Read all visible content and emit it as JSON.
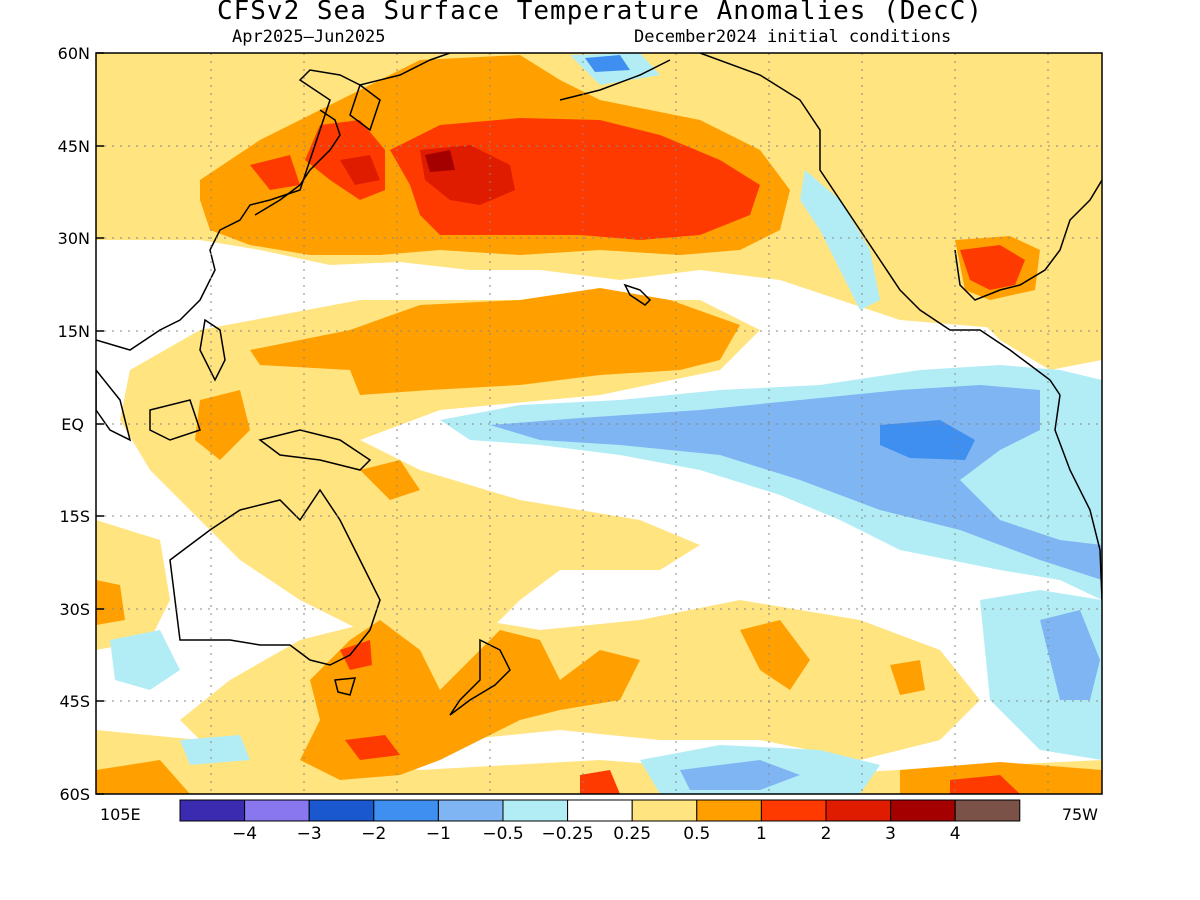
{
  "header": {
    "title": "CFSv2 Sea Surface Temperature Anomalies (DecC)",
    "period": "Apr2025–Jun2025",
    "init": "December2024 initial conditions"
  },
  "axes": {
    "lat_labels": [
      "60N",
      "45N",
      "30N",
      "15N",
      "EQ",
      "15S",
      "30S",
      "45S",
      "60S"
    ],
    "lon_left": "105E",
    "lon_right": "75W"
  },
  "colorbar": {
    "colors": [
      "#3b2bb0",
      "#8877ee",
      "#1a58d0",
      "#3f8ff0",
      "#7fb5f2",
      "#b2edf6",
      "#ffffff",
      "#ffe480",
      "#ffa000",
      "#ff3a00",
      "#e01c00",
      "#a40000",
      "#7a5248"
    ],
    "labels": [
      "−4",
      "−3",
      "−2",
      "−1",
      "−0.5",
      "−0.25",
      "0.25",
      "0.5",
      "1",
      "2",
      "3",
      "4"
    ]
  }
}
